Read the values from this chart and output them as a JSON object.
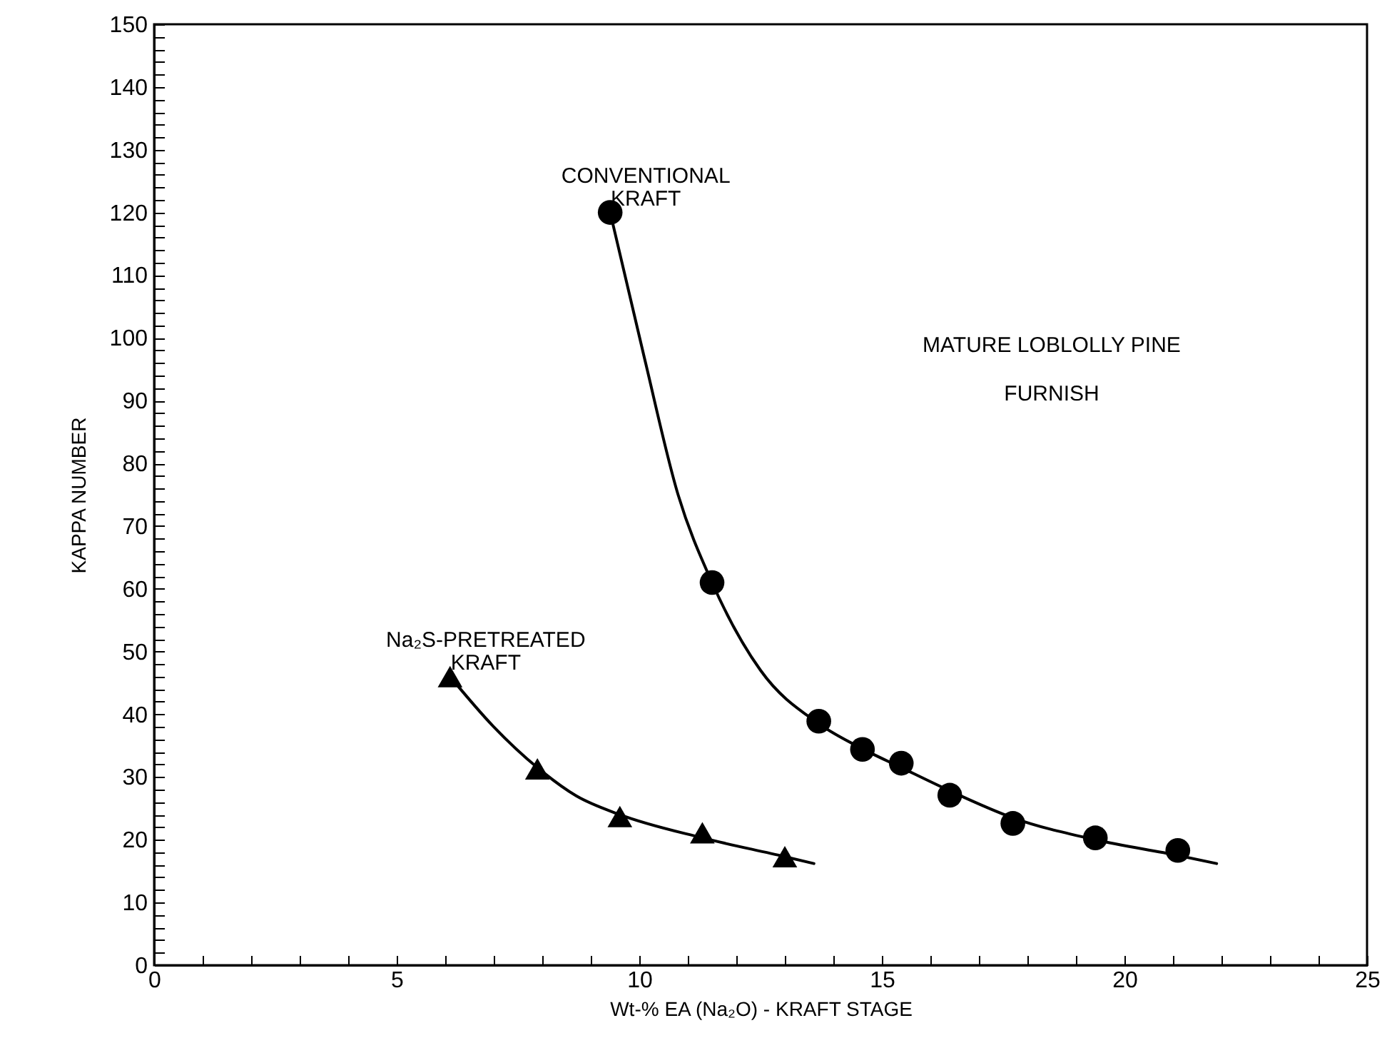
{
  "chart_data": {
    "type": "scatter",
    "xlabel": "Wt-% EA (Na₂O) - KRAFT STAGE",
    "ylabel": "KAPPA NUMBER",
    "xlim": [
      0,
      25
    ],
    "ylim": [
      0,
      150
    ],
    "xticks": [
      0,
      {
        "value": 1,
        "label": null
      },
      {
        "value": 2,
        "label": null
      },
      {
        "value": 3,
        "label": null
      },
      {
        "value": 4,
        "label": null
      },
      5,
      {
        "value": 6,
        "label": null
      },
      {
        "value": 7,
        "label": null
      },
      {
        "value": 8,
        "label": null
      },
      {
        "value": 9,
        "label": null
      },
      10,
      {
        "value": 11,
        "label": null
      },
      {
        "value": 12,
        "label": null
      },
      {
        "value": 13,
        "label": null
      },
      {
        "value": 14,
        "label": null
      },
      15,
      {
        "value": 16,
        "label": null
      },
      {
        "value": 17,
        "label": null
      },
      {
        "value": 18,
        "label": null
      },
      {
        "value": 19,
        "label": null
      },
      20,
      {
        "value": 21,
        "label": null
      },
      {
        "value": 22,
        "label": null
      },
      {
        "value": 23,
        "label": null
      },
      {
        "value": 24,
        "label": null
      },
      25
    ],
    "yticks": [
      0,
      {
        "value": 2,
        "label": null
      },
      {
        "value": 4,
        "label": null
      },
      {
        "value": 6,
        "label": null
      },
      {
        "value": 8,
        "label": null
      },
      10,
      {
        "value": 12,
        "label": null
      },
      {
        "value": 14,
        "label": null
      },
      {
        "value": 16,
        "label": null
      },
      {
        "value": 18,
        "label": null
      },
      20,
      {
        "value": 22,
        "label": null
      },
      {
        "value": 24,
        "label": null
      },
      {
        "value": 26,
        "label": null
      },
      {
        "value": 28,
        "label": null
      },
      30,
      {
        "value": 32,
        "label": null
      },
      {
        "value": 34,
        "label": null
      },
      {
        "value": 36,
        "label": null
      },
      {
        "value": 38,
        "label": null
      },
      40,
      {
        "value": 42,
        "label": null
      },
      {
        "value": 44,
        "label": null
      },
      {
        "value": 46,
        "label": null
      },
      {
        "value": 48,
        "label": null
      },
      50,
      {
        "value": 52,
        "label": null
      },
      {
        "value": 54,
        "label": null
      },
      {
        "value": 56,
        "label": null
      },
      {
        "value": 58,
        "label": null
      },
      60,
      {
        "value": 62,
        "label": null
      },
      {
        "value": 64,
        "label": null
      },
      {
        "value": 66,
        "label": null
      },
      {
        "value": 68,
        "label": null
      },
      70,
      {
        "value": 72,
        "label": null
      },
      {
        "value": 74,
        "label": null
      },
      {
        "value": 76,
        "label": null
      },
      {
        "value": 78,
        "label": null
      },
      80,
      {
        "value": 82,
        "label": null
      },
      {
        "value": 84,
        "label": null
      },
      {
        "value": 86,
        "label": null
      },
      {
        "value": 88,
        "label": null
      },
      90,
      {
        "value": 92,
        "label": null
      },
      {
        "value": 94,
        "label": null
      },
      {
        "value": 96,
        "label": null
      },
      {
        "value": 98,
        "label": null
      },
      100,
      {
        "value": 102,
        "label": null
      },
      {
        "value": 104,
        "label": null
      },
      {
        "value": 106,
        "label": null
      },
      {
        "value": 108,
        "label": null
      },
      110,
      {
        "value": 112,
        "label": null
      },
      {
        "value": 114,
        "label": null
      },
      {
        "value": 116,
        "label": null
      },
      {
        "value": 118,
        "label": null
      },
      120,
      {
        "value": 122,
        "label": null
      },
      {
        "value": 124,
        "label": null
      },
      {
        "value": 126,
        "label": null
      },
      {
        "value": 128,
        "label": null
      },
      130,
      {
        "value": 132,
        "label": null
      },
      {
        "value": 134,
        "label": null
      },
      {
        "value": 136,
        "label": null
      },
      {
        "value": 138,
        "label": null
      },
      140,
      {
        "value": 142,
        "label": null
      },
      {
        "value": 144,
        "label": null
      },
      {
        "value": 146,
        "label": null
      },
      {
        "value": 148,
        "label": null
      },
      150
    ],
    "grid": false,
    "legend": false,
    "annotations": [
      "MATURE LOBLOLLY PINE\nFURNISH"
    ],
    "series": [
      {
        "name": "CONVENTIONAL\nKRAFT",
        "type": "scatter",
        "marker": "circle",
        "color": "#000000",
        "x": [
          9.4,
          11.5,
          13.7,
          14.6,
          15.4,
          16.4,
          17.7,
          19.4,
          21.1
        ],
        "values": [
          120,
          61,
          38.9,
          34.4,
          32.2,
          27.1,
          22.6,
          20.3,
          18.3
        ]
      },
      {
        "name": "Na₂S-PRETREATED\nKRAFT",
        "type": "scatter",
        "marker": "triangle",
        "color": "#000000",
        "x": [
          6.1,
          7.9,
          9.6,
          11.3,
          13.0
        ],
        "values": [
          46,
          31.3,
          23.7,
          21.1,
          17.3
        ]
      },
      {
        "type": "line",
        "marker": "none",
        "color": "#000000",
        "x": [
          9.4,
          10.1,
          10.8,
          11.5,
          12.5,
          13.7,
          14.6,
          15.4,
          16.4,
          17.7,
          19.4,
          21.1,
          21.9
        ],
        "values": [
          120,
          97,
          75,
          61,
          47,
          38.5,
          34.5,
          31.5,
          27.8,
          23.5,
          20,
          17.5,
          16.2
        ]
      },
      {
        "type": "line",
        "marker": "none",
        "color": "#000000",
        "x": [
          6.1,
          7,
          7.9,
          8.7,
          9.6,
          11.3,
          13.0,
          13.6
        ],
        "values": [
          46,
          38,
          31.5,
          27,
          24,
          20.3,
          17.3,
          16.2
        ]
      }
    ]
  }
}
